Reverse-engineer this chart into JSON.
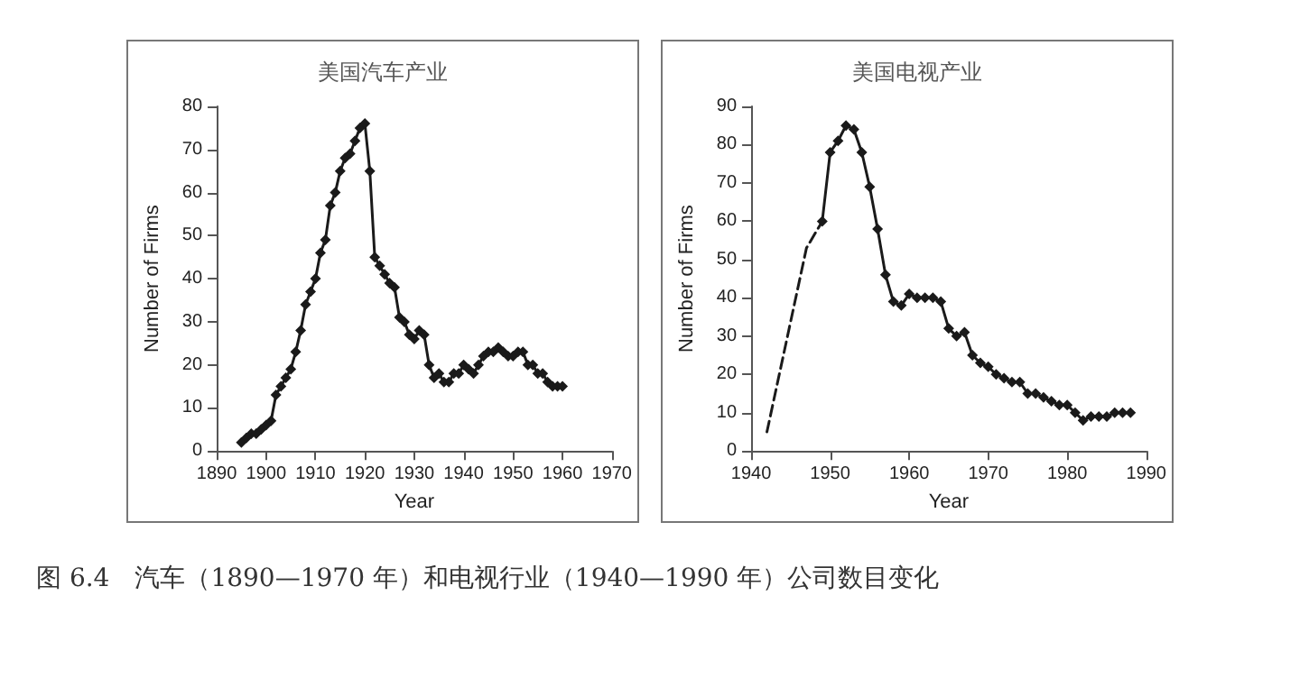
{
  "chart_data": [
    {
      "type": "line",
      "title": "美国汽车产业",
      "xlabel": "Year",
      "ylabel": "Number of Firms",
      "xlim": [
        1890,
        1970
      ],
      "xticks": [
        1890,
        1900,
        1910,
        1920,
        1930,
        1940,
        1950,
        1960,
        1970
      ],
      "ylim": [
        0,
        80
      ],
      "yticks": [
        0,
        10,
        20,
        30,
        40,
        50,
        60,
        70,
        80
      ],
      "grid": false,
      "marker": "diamond",
      "line_style": "solid",
      "series": [
        {
          "color": "#1a1a1a",
          "x": [
            1895,
            1896,
            1897,
            1898,
            1899,
            1900,
            1901,
            1902,
            1903,
            1904,
            1905,
            1906,
            1907,
            1908,
            1909,
            1910,
            1911,
            1912,
            1913,
            1914,
            1915,
            1916,
            1917,
            1918,
            1919,
            1920,
            1921,
            1922,
            1923,
            1924,
            1925,
            1926,
            1927,
            1928,
            1929,
            1930,
            1931,
            1932,
            1933,
            1934,
            1935,
            1936,
            1937,
            1938,
            1939,
            1940,
            1941,
            1942,
            1943,
            1944,
            1945,
            1946,
            1947,
            1948,
            1949,
            1950,
            1951,
            1952,
            1953,
            1954,
            1955,
            1956,
            1957,
            1958,
            1959,
            1960
          ],
          "values": [
            2,
            3,
            4,
            4,
            5,
            6,
            7,
            13,
            15,
            17,
            19,
            23,
            28,
            34,
            37,
            40,
            46,
            49,
            57,
            60,
            65,
            68,
            69,
            72,
            75,
            76,
            65,
            45,
            43,
            41,
            39,
            38,
            31,
            30,
            27,
            26,
            28,
            27,
            20,
            17,
            18,
            16,
            16,
            18,
            18,
            20,
            19,
            18,
            20,
            22,
            23,
            23,
            24,
            23,
            22,
            22,
            23,
            23,
            20,
            20,
            18,
            18,
            16,
            15,
            15,
            15
          ]
        }
      ]
    },
    {
      "type": "line",
      "title": "美国电视产业",
      "xlabel": "Year",
      "ylabel": "Number of Firms",
      "xlim": [
        1940,
        1990
      ],
      "xticks": [
        1940,
        1950,
        1960,
        1970,
        1980,
        1990
      ],
      "ylim": [
        0,
        90
      ],
      "yticks": [
        0,
        10,
        20,
        30,
        40,
        50,
        60,
        70,
        80,
        90
      ],
      "grid": false,
      "series": [
        {
          "color": "#1a1a1a",
          "line_style": "dashed",
          "marker": "none",
          "x": [
            1942,
            1947,
            1949
          ],
          "values": [
            5,
            53,
            60
          ]
        },
        {
          "color": "#1a1a1a",
          "line_style": "solid",
          "marker": "diamond",
          "x": [
            1949,
            1950,
            1951,
            1952,
            1953,
            1954,
            1955,
            1956,
            1957,
            1958,
            1959,
            1960,
            1961,
            1962,
            1963,
            1964,
            1965,
            1966,
            1967,
            1968,
            1969,
            1970,
            1971,
            1972,
            1973,
            1974,
            1975,
            1976,
            1977,
            1978,
            1979,
            1980,
            1981,
            1982,
            1983,
            1984,
            1985,
            1986,
            1987,
            1988
          ],
          "values": [
            60,
            78,
            81,
            85,
            84,
            78,
            69,
            58,
            46,
            39,
            38,
            41,
            40,
            40,
            40,
            39,
            32,
            30,
            31,
            25,
            23,
            22,
            20,
            19,
            18,
            18,
            15,
            15,
            14,
            13,
            12,
            12,
            10,
            8,
            9,
            9,
            9,
            10,
            10,
            10
          ]
        }
      ]
    },
    {
      "type": "other",
      "annotations": [
        "图 6.4　汽车（1890—1970 年）和电视行业（1940—1990 年）公司数目变化"
      ]
    }
  ]
}
